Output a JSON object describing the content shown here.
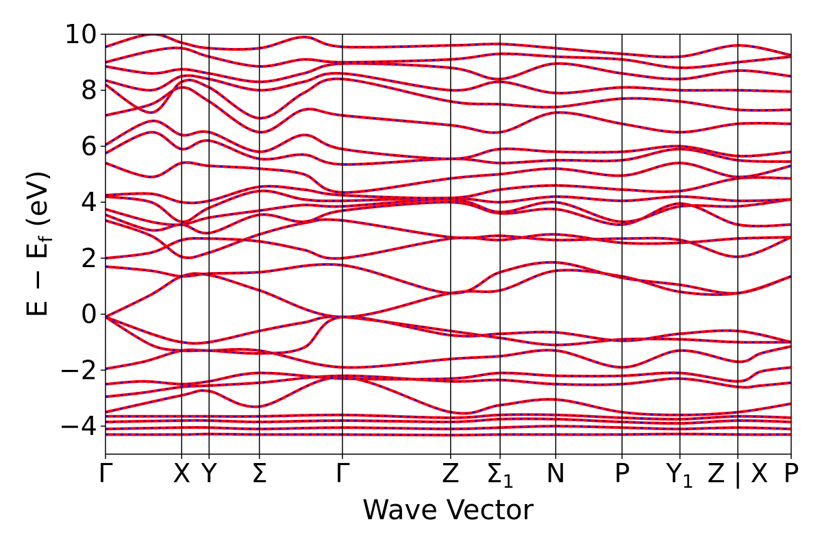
{
  "chart_data": {
    "type": "line",
    "title": "",
    "xlabel": "Wave Vector",
    "ylabel_parts": {
      "main": "E − E",
      "sub": "f",
      "tail": " (eV)"
    },
    "ylim": [
      -5,
      10
    ],
    "yticks": [
      {
        "value": -4,
        "label": "−4"
      },
      {
        "value": -2,
        "label": "−2"
      },
      {
        "value": 0,
        "label": "0"
      },
      {
        "value": 2,
        "label": "2"
      },
      {
        "value": 4,
        "label": "4"
      },
      {
        "value": 6,
        "label": "6"
      },
      {
        "value": 8,
        "label": "8"
      },
      {
        "value": 10,
        "label": "10"
      }
    ],
    "kpath": [
      {
        "k": 0.0,
        "label": "Γ",
        "sub": ""
      },
      {
        "k": 1.0,
        "label": "X",
        "sub": ""
      },
      {
        "k": 1.36,
        "label": "Y",
        "sub": ""
      },
      {
        "k": 2.02,
        "label": "Σ",
        "sub": ""
      },
      {
        "k": 3.11,
        "label": "Γ",
        "sub": ""
      },
      {
        "k": 4.53,
        "label": "Z",
        "sub": ""
      },
      {
        "k": 5.18,
        "label": "Σ",
        "sub": "1"
      },
      {
        "k": 5.91,
        "label": "N",
        "sub": ""
      },
      {
        "k": 6.78,
        "label": "P",
        "sub": ""
      },
      {
        "k": 7.54,
        "label": "Y",
        "sub": "1"
      },
      {
        "k": 8.3,
        "label": "Z | X",
        "sub": ""
      },
      {
        "k": 9.0,
        "label": "P",
        "sub": ""
      }
    ],
    "xlim": [
      0,
      9.0
    ],
    "legend": "none",
    "grid": false,
    "series_styles": [
      {
        "name": "",
        "color": "#ff0000",
        "style": "solid"
      },
      {
        "name": "",
        "color": "#0000ff",
        "style": "dashed"
      }
    ],
    "bands": [
      {
        "k": [
          0,
          1,
          1.36,
          2.02,
          3.11,
          4.53,
          5.18,
          5.91,
          6.78,
          7.54,
          8.3,
          9.0
        ],
        "E": [
          -4.3,
          -4.3,
          -4.28,
          -4.3,
          -4.3,
          -4.32,
          -4.3,
          -4.3,
          -4.3,
          -4.28,
          -4.3,
          -4.3
        ]
      },
      {
        "k": [
          0,
          1,
          1.36,
          2.02,
          3.11,
          4.53,
          5.18,
          5.91,
          6.78,
          7.54,
          8.3,
          9.0
        ],
        "E": [
          -4.1,
          -4.05,
          -4.05,
          -4.1,
          -4.05,
          -4.1,
          -4.05,
          -4.0,
          -4.05,
          -4.1,
          -4.05,
          -4.1
        ]
      },
      {
        "k": [
          0,
          1,
          1.36,
          2.02,
          3.11,
          4.53,
          5.18,
          5.91,
          6.78,
          7.54,
          8.3,
          9.0
        ],
        "E": [
          -3.85,
          -3.8,
          -3.8,
          -3.85,
          -3.8,
          -3.85,
          -3.75,
          -3.75,
          -3.85,
          -3.9,
          -3.8,
          -3.85
        ]
      },
      {
        "k": [
          0,
          1,
          1.36,
          2.02,
          3.11,
          4.53,
          5.18,
          5.91,
          6.78,
          7.54,
          8.3,
          9.0
        ],
        "E": [
          -3.65,
          -3.65,
          -3.65,
          -3.65,
          -3.6,
          -3.7,
          -3.6,
          -3.6,
          -3.7,
          -3.75,
          -3.65,
          -3.7
        ]
      },
      {
        "k": [
          0,
          1,
          1.36,
          2.02,
          3.11,
          4.53,
          5.18,
          5.91,
          6.78,
          7.54,
          8.3,
          9.0
        ],
        "E": [
          -3.5,
          -2.9,
          -2.75,
          -3.3,
          -2.25,
          -3.5,
          -3.25,
          -3.05,
          -3.5,
          -3.6,
          -3.5,
          -3.2
        ]
      },
      {
        "k": [
          0,
          0.5,
          1,
          1.36,
          2.02,
          3.11,
          4.53,
          5.18,
          5.91,
          6.78,
          7.54,
          8.3,
          8.6,
          9.0
        ],
        "E": [
          -2.95,
          -2.8,
          -2.6,
          -2.55,
          -2.45,
          -2.2,
          -2.4,
          -2.35,
          -2.5,
          -2.5,
          -2.3,
          -2.6,
          -2.55,
          -2.45
        ]
      },
      {
        "k": [
          0,
          0.5,
          1,
          1.36,
          2.02,
          3.11,
          4.53,
          5.18,
          5.91,
          6.78,
          7.54,
          8.3,
          8.6,
          9.0
        ],
        "E": [
          -2.5,
          -2.4,
          -2.5,
          -2.4,
          -2.1,
          -2.3,
          -2.3,
          -2.1,
          -2.2,
          -2.2,
          -2.1,
          -2.4,
          -2.05,
          -1.9
        ]
      },
      {
        "k": [
          0,
          0.5,
          1,
          1.36,
          2.02,
          3.11,
          4.53,
          5.18,
          5.91,
          6.78,
          7.54,
          8.3,
          8.6,
          9.0
        ],
        "E": [
          -1.95,
          -1.7,
          -1.3,
          -1.3,
          -1.3,
          -1.9,
          -1.6,
          -1.5,
          -1.3,
          -1.9,
          -1.3,
          -1.7,
          -1.4,
          -1.15
        ]
      },
      {
        "k": [
          0,
          0.6,
          1,
          1.36,
          2.02,
          2.6,
          3.11,
          4.53,
          5.18,
          5.91,
          6.78,
          7.54,
          8.3,
          9.0
        ],
        "E": [
          -0.1,
          -0.7,
          -1.0,
          -1.0,
          -0.6,
          -0.3,
          -0.1,
          -0.6,
          -0.85,
          -1.1,
          -0.9,
          -0.9,
          -1.0,
          -1.0
        ]
      },
      {
        "k": [
          0,
          0.6,
          1,
          1.36,
          2.02,
          2.6,
          3.11,
          4.53,
          5.18,
          5.91,
          6.78,
          7.54,
          8.3,
          9.0
        ],
        "E": [
          -0.1,
          -1.1,
          -1.3,
          -1.3,
          -1.4,
          -1.2,
          -0.1,
          -0.75,
          -0.7,
          -0.65,
          -0.95,
          -0.7,
          -0.6,
          -1.0
        ]
      },
      {
        "k": [
          0,
          0.6,
          1,
          1.36,
          2.02,
          3.11,
          4.53,
          5.18,
          5.91,
          6.78,
          7.54,
          8.3,
          9.0
        ],
        "E": [
          -0.1,
          0.7,
          1.35,
          1.4,
          0.85,
          -0.1,
          0.75,
          0.85,
          1.55,
          1.35,
          0.8,
          0.75,
          1.35
        ]
      },
      {
        "k": [
          0,
          0.6,
          1,
          1.36,
          2.02,
          3.11,
          4.53,
          5.18,
          5.91,
          6.78,
          7.54,
          8.3,
          9.0
        ],
        "E": [
          1.7,
          1.55,
          1.35,
          1.45,
          1.5,
          1.75,
          0.75,
          1.5,
          1.85,
          1.3,
          1.05,
          0.75,
          1.35
        ]
      },
      {
        "k": [
          0,
          0.6,
          1,
          1.36,
          2.02,
          2.6,
          3.11,
          4.53,
          5.18,
          5.91,
          6.78,
          7.54,
          8.3,
          9.0
        ],
        "E": [
          2.0,
          2.2,
          2.65,
          2.7,
          2.6,
          2.3,
          2.0,
          2.7,
          2.65,
          2.85,
          2.55,
          2.55,
          2.7,
          2.75
        ]
      },
      {
        "k": [
          0,
          0.6,
          1,
          1.36,
          2.02,
          2.6,
          3.11,
          4.53,
          5.18,
          5.91,
          6.78,
          7.54,
          8.3,
          9.0
        ],
        "E": [
          3.35,
          2.8,
          2.05,
          2.2,
          2.85,
          3.25,
          3.35,
          2.75,
          2.8,
          2.65,
          2.7,
          2.65,
          2.05,
          2.75
        ]
      },
      {
        "k": [
          0,
          0.6,
          1,
          1.36,
          2.02,
          2.6,
          3.11,
          4.53,
          5.18,
          5.91,
          6.78,
          7.54,
          8.3,
          9.0
        ],
        "E": [
          3.55,
          3.0,
          3.2,
          2.9,
          3.55,
          3.3,
          3.7,
          4.0,
          3.6,
          3.75,
          3.2,
          3.95,
          3.2,
          3.2
        ]
      },
      {
        "k": [
          0,
          0.6,
          1,
          1.36,
          2.02,
          2.6,
          3.11,
          4.53,
          5.18,
          5.91,
          6.78,
          7.54,
          8.3,
          9.0
        ],
        "E": [
          3.75,
          3.3,
          3.2,
          3.45,
          3.7,
          3.9,
          3.85,
          4.1,
          3.65,
          4.0,
          3.3,
          3.85,
          3.85,
          4.1
        ]
      },
      {
        "k": [
          0,
          0.6,
          1,
          1.36,
          2.02,
          2.6,
          3.11,
          4.53,
          5.18,
          5.91,
          6.78,
          7.54,
          8.3,
          9.0
        ],
        "E": [
          4.2,
          4.0,
          3.3,
          3.8,
          4.4,
          4.1,
          4.05,
          4.15,
          4.0,
          4.2,
          4.05,
          4.2,
          4.05,
          4.1
        ]
      },
      {
        "k": [
          0,
          0.6,
          1,
          1.36,
          2.02,
          2.6,
          3.11,
          4.53,
          5.18,
          5.91,
          6.78,
          7.54,
          8.3,
          9.0
        ],
        "E": [
          4.25,
          4.3,
          4.0,
          4.05,
          4.55,
          4.45,
          4.25,
          4.15,
          4.45,
          4.6,
          4.45,
          4.4,
          4.85,
          4.85
        ]
      },
      {
        "k": [
          0,
          0.6,
          1,
          1.36,
          2.02,
          2.6,
          3.11,
          4.53,
          5.18,
          5.91,
          6.78,
          7.54,
          8.3,
          9.0
        ],
        "E": [
          5.4,
          4.9,
          5.4,
          5.3,
          5.2,
          5.0,
          4.35,
          4.85,
          5.0,
          5.2,
          4.95,
          5.4,
          4.9,
          5.3
        ]
      },
      {
        "k": [
          0,
          0.6,
          1,
          1.36,
          2.02,
          2.6,
          3.11,
          4.53,
          5.18,
          5.91,
          6.78,
          7.54,
          8.3,
          9.0
        ],
        "E": [
          5.75,
          6.5,
          5.9,
          6.2,
          5.55,
          5.7,
          5.35,
          5.55,
          5.4,
          5.5,
          5.5,
          5.9,
          5.5,
          5.45
        ]
      },
      {
        "k": [
          0,
          0.6,
          1,
          1.36,
          2.02,
          2.6,
          3.11,
          4.53,
          5.18,
          5.91,
          6.78,
          7.54,
          8.3,
          9.0
        ],
        "E": [
          6.05,
          6.9,
          6.4,
          6.5,
          5.8,
          6.4,
          5.9,
          5.55,
          5.9,
          5.8,
          5.8,
          6.0,
          5.65,
          5.8
        ]
      },
      {
        "k": [
          0,
          0.6,
          1,
          1.36,
          2.02,
          2.6,
          3.11,
          4.53,
          5.18,
          5.91,
          6.78,
          7.54,
          8.3,
          9.0
        ],
        "E": [
          7.1,
          7.5,
          8.1,
          7.6,
          6.5,
          7.3,
          7.1,
          6.75,
          6.5,
          7.2,
          6.8,
          6.5,
          6.8,
          6.8
        ]
      },
      {
        "k": [
          0,
          0.6,
          1,
          1.36,
          2.02,
          2.6,
          3.11,
          4.53,
          5.18,
          5.91,
          6.78,
          7.54,
          8.3,
          9.0
        ],
        "E": [
          8.2,
          7.2,
          8.3,
          8.1,
          7.0,
          7.9,
          8.4,
          7.6,
          7.5,
          7.4,
          7.7,
          7.6,
          7.3,
          7.3
        ]
      },
      {
        "k": [
          0,
          0.6,
          1,
          1.36,
          2.02,
          2.6,
          3.11,
          4.53,
          5.18,
          5.91,
          6.78,
          7.54,
          8.3,
          9.0
        ],
        "E": [
          8.35,
          8.0,
          8.5,
          8.4,
          8.0,
          8.3,
          8.6,
          8.0,
          8.3,
          7.9,
          8.1,
          8.0,
          8.0,
          7.95
        ]
      },
      {
        "k": [
          0,
          0.6,
          1,
          1.36,
          2.02,
          2.6,
          3.11,
          4.53,
          5.18,
          5.91,
          6.78,
          7.54,
          8.3,
          9.0
        ],
        "E": [
          8.85,
          8.6,
          8.75,
          8.6,
          8.3,
          8.6,
          8.95,
          8.8,
          8.4,
          8.95,
          8.6,
          8.4,
          8.7,
          8.5
        ]
      },
      {
        "k": [
          0,
          0.6,
          1,
          1.36,
          2.02,
          2.6,
          3.11,
          4.53,
          5.18,
          5.91,
          6.78,
          7.54,
          8.3,
          9.0
        ],
        "E": [
          9.0,
          9.4,
          9.5,
          9.2,
          8.85,
          9.1,
          9.0,
          9.1,
          9.3,
          9.2,
          9.1,
          8.8,
          9.0,
          9.2
        ]
      },
      {
        "k": [
          0,
          0.6,
          1,
          1.36,
          2.02,
          2.6,
          3.11,
          4.53,
          5.18,
          5.91,
          6.78,
          7.54,
          8.3,
          9.0
        ],
        "E": [
          9.55,
          10.0,
          9.7,
          9.5,
          9.5,
          9.9,
          9.55,
          9.6,
          9.65,
          9.5,
          9.3,
          9.2,
          9.6,
          9.25
        ]
      }
    ]
  }
}
